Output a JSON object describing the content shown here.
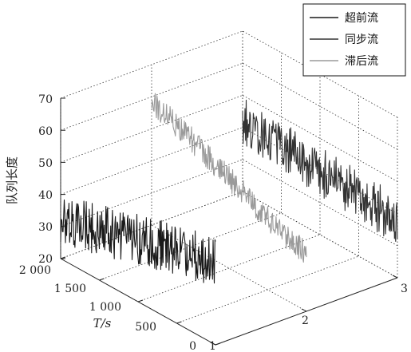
{
  "chart_data": {
    "type": "line",
    "title": "",
    "zlabel": "队列长度",
    "ylabel": "T/s",
    "xlabel": "",
    "zlim": [
      20,
      70
    ],
    "z_ticks": [
      "20",
      "30",
      "40",
      "50",
      "60",
      "70"
    ],
    "t_lim": [
      0,
      2000
    ],
    "t_ticks": [
      "0",
      "500",
      "1 000",
      "1 500",
      "2 000"
    ],
    "x_lim": [
      1,
      3
    ],
    "x_ticks": [
      "1",
      "2",
      "3"
    ],
    "grid": true,
    "legend_position": "top-right",
    "series": [
      {
        "name": "超前流",
        "x_position": 1,
        "color": "#1a1a1a",
        "trend_t": [
          0,
          400,
          800,
          1200,
          1600,
          2000
        ],
        "trend_values": [
          46,
          43,
          41,
          38,
          35,
          32
        ],
        "noise_amplitude": 8
      },
      {
        "name": "同步流",
        "x_position": 3,
        "color": "#333333",
        "trend_t": [
          0,
          400,
          800,
          1200,
          1600,
          2000
        ],
        "trend_values": [
          38,
          39,
          40,
          40,
          41,
          42
        ],
        "noise_amplitude": 8
      },
      {
        "name": "滞后流",
        "x_position": 2,
        "color": "#9a9a9a",
        "trend_t": [
          0,
          400,
          800,
          1200,
          1600,
          2000
        ],
        "trend_values": [
          38,
          41,
          46,
          50,
          55,
          58
        ],
        "noise_amplitude": 4
      }
    ]
  }
}
